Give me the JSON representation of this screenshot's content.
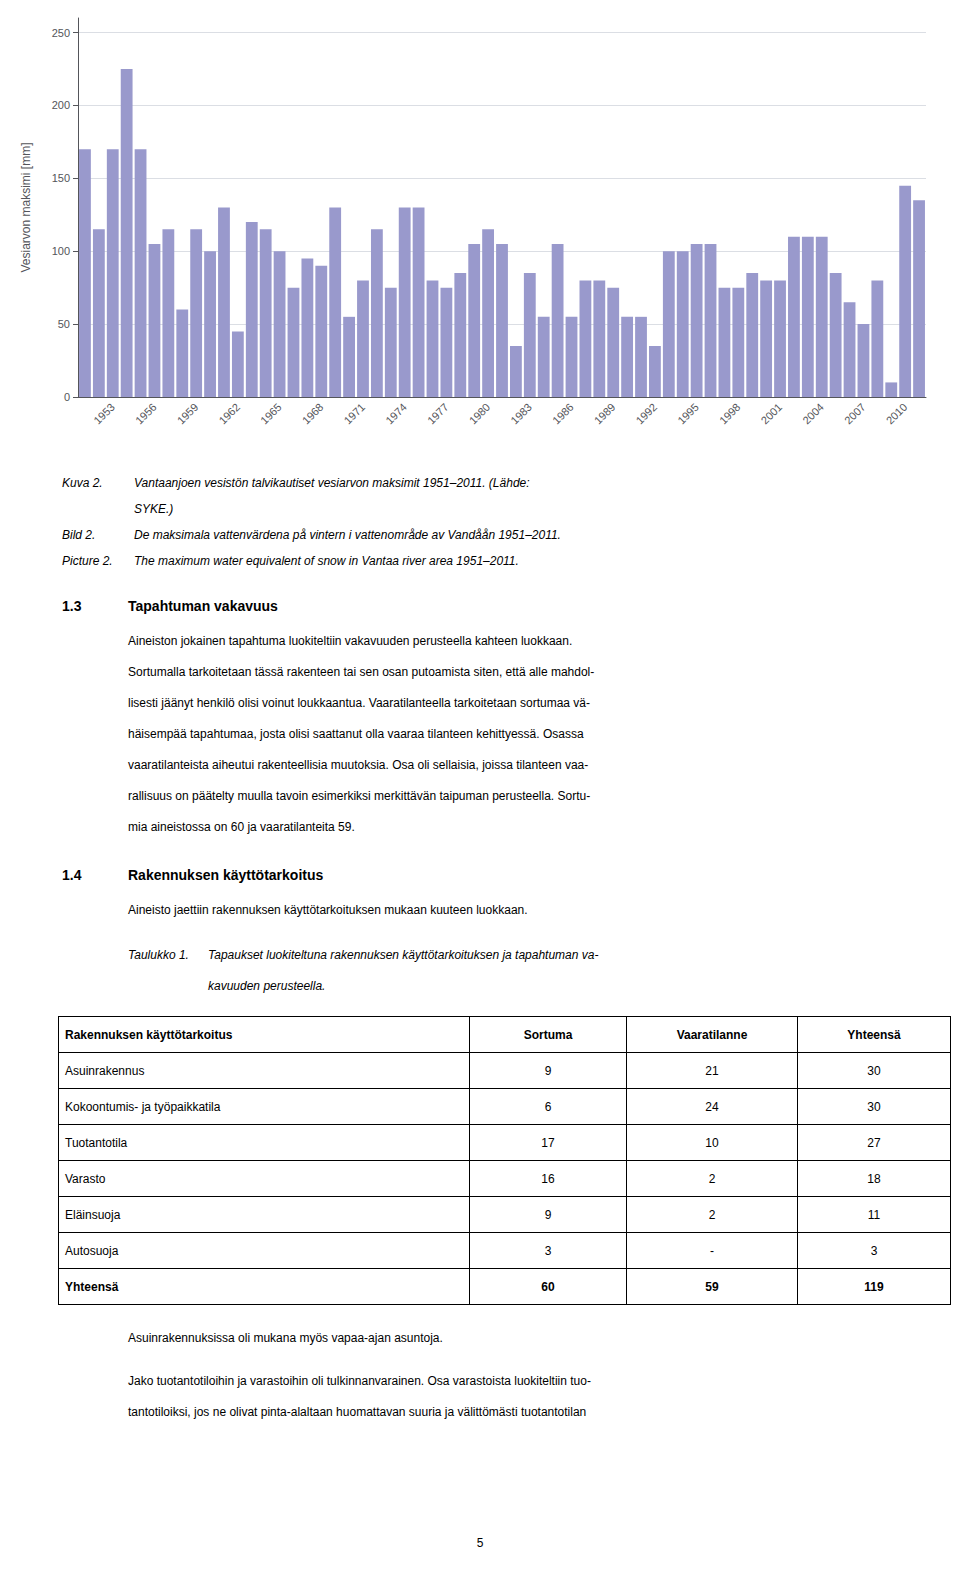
{
  "chart_data": {
    "type": "bar",
    "categories": [
      null,
      null,
      "1953",
      null,
      null,
      "1956",
      null,
      null,
      "1959",
      null,
      null,
      "1962",
      null,
      null,
      "1965",
      null,
      null,
      "1968",
      null,
      null,
      "1971",
      null,
      null,
      "1974",
      null,
      null,
      "1977",
      null,
      null,
      "1980",
      null,
      null,
      "1983",
      null,
      null,
      "1986",
      null,
      null,
      "1989",
      null,
      null,
      "1992",
      null,
      null,
      "1995",
      null,
      null,
      "1998",
      null,
      null,
      "2001",
      null,
      null,
      "2004",
      null,
      null,
      "2007",
      null,
      null,
      "2010",
      null
    ],
    "values": [
      170,
      115,
      170,
      225,
      170,
      105,
      115,
      60,
      115,
      100,
      130,
      45,
      120,
      115,
      100,
      75,
      95,
      90,
      130,
      55,
      80,
      115,
      75,
      130,
      130,
      80,
      75,
      85,
      105,
      115,
      105,
      35,
      85,
      55,
      105,
      55,
      80,
      80,
      75,
      55,
      55,
      35,
      100,
      100,
      105,
      105,
      75,
      75,
      85,
      80,
      80,
      110,
      110,
      110,
      85,
      65,
      50,
      80,
      10,
      145,
      135
    ],
    "color": "#9999cc",
    "ylabel": "Vesiarvon maksimi [mm]",
    "ylim": [
      0,
      260
    ],
    "yticks": [
      0,
      50,
      100,
      150,
      200,
      250
    ],
    "grid": true
  },
  "page": {
    "captions": [
      {
        "label": "Kuva 2.",
        "lines": [
          "Vantaanjoen vesistön talvikautiset vesiarvon maksimit 1951–2011. (Lähde:",
          "SYKE.)"
        ]
      },
      {
        "label": "Bild 2.",
        "lines": [
          "De maksimala vattenvärdena på vintern i vattenområde av Vandåån 1951–2011."
        ]
      },
      {
        "label": "Picture 2.",
        "lines": [
          "The maximum water equivalent of snow in Vantaa river area 1951–2011."
        ]
      }
    ],
    "sections": [
      {
        "number": "1.3",
        "title": "Tapahtuman vakavuus",
        "lines": [
          "Aineiston jokainen tapahtuma luokiteltiin vakavuuden perusteella kahteen luokkaan.",
          "Sortumalla tarkoitetaan tässä rakenteen tai sen osan putoamista siten, että alle mahdol-",
          "lisesti jäänyt henkilö olisi voinut loukkaantua. Vaaratilanteella tarkoitetaan sortumaa vä-",
          "häisempää tapahtumaa, josta olisi saattanut olla vaaraa tilanteen kehittyessä. Osassa",
          "vaaratilanteista aiheutui rakenteellisia muutoksia. Osa oli sellaisia, joissa tilanteen vaa-",
          "rallisuus on päätelty muulla tavoin esimerkiksi merkittävän taipuman perusteella. Sortu-",
          "mia aineistossa on 60 ja vaaratilanteita 59."
        ]
      },
      {
        "number": "1.4",
        "title": "Rakennuksen käyttötarkoitus",
        "lines": [
          "Aineisto jaettiin rakennuksen käyttötarkoituksen mukaan kuuteen luokkaan."
        ]
      }
    ],
    "table": {
      "label": "Taulukko 1.",
      "caption_lines": [
        "Tapaukset luokiteltuna rakennuksen käyttötarkoituksen ja tapahtuman va-",
        "kavuuden perusteella."
      ],
      "headers": [
        "Rakennuksen käyttötarkoitus",
        "Sortuma",
        "Vaaratilanne",
        "Yhteensä"
      ],
      "rows": [
        [
          "Asuinrakennus",
          "9",
          "21",
          "30"
        ],
        [
          "Kokoontumis- ja työpaikkatila",
          "6",
          "24",
          "30"
        ],
        [
          "Tuotantotila",
          "17",
          "10",
          "27"
        ],
        [
          "Varasto",
          "16",
          "2",
          "18"
        ],
        [
          "Eläinsuoja",
          "9",
          "2",
          "11"
        ],
        [
          "Autosuoja",
          "3",
          "-",
          "3"
        ],
        [
          "Yhteensä",
          "60",
          "59",
          "119"
        ]
      ]
    },
    "notes": [
      "Asuinrakennuksissa oli mukana myös vapaa-ajan asuntoja.",
      "Jako tuotantotiloihin ja varastoihin oli tulkinnanvarainen. Osa varastoista luokiteltiin tuo-",
      "tantotiloiksi, jos ne olivat pinta-alaltaan huomattavan suuria ja välittömästi tuotantotilan"
    ],
    "page_number": "5"
  }
}
